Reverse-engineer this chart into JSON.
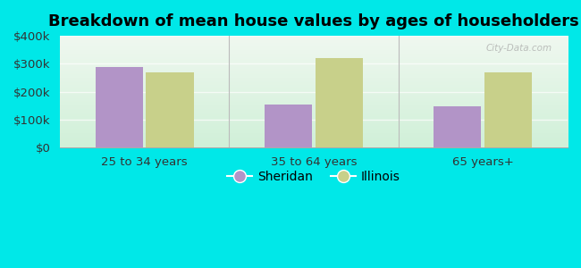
{
  "title": "Breakdown of mean house values by ages of householders",
  "categories": [
    "25 to 34 years",
    "35 to 64 years",
    "65 years+"
  ],
  "sheridan_values": [
    287000,
    155000,
    148000
  ],
  "illinois_values": [
    270000,
    320000,
    270000
  ],
  "sheridan_color": "#b294c7",
  "illinois_color": "#c8d08a",
  "figure_bg_color": "#00e8e8",
  "plot_bg_top": "#f0f8f0",
  "plot_bg_bottom": "#d0f0d8",
  "ylim": [
    0,
    400000
  ],
  "yticks": [
    0,
    100000,
    200000,
    300000,
    400000
  ],
  "ytick_labels": [
    "$0",
    "$100k",
    "$200k",
    "$300k",
    "$400k"
  ],
  "legend_labels": [
    "Sheridan",
    "Illinois"
  ],
  "bar_width": 0.28,
  "title_fontsize": 13,
  "tick_fontsize": 9.5,
  "legend_fontsize": 10,
  "watermark": "City-Data.com"
}
